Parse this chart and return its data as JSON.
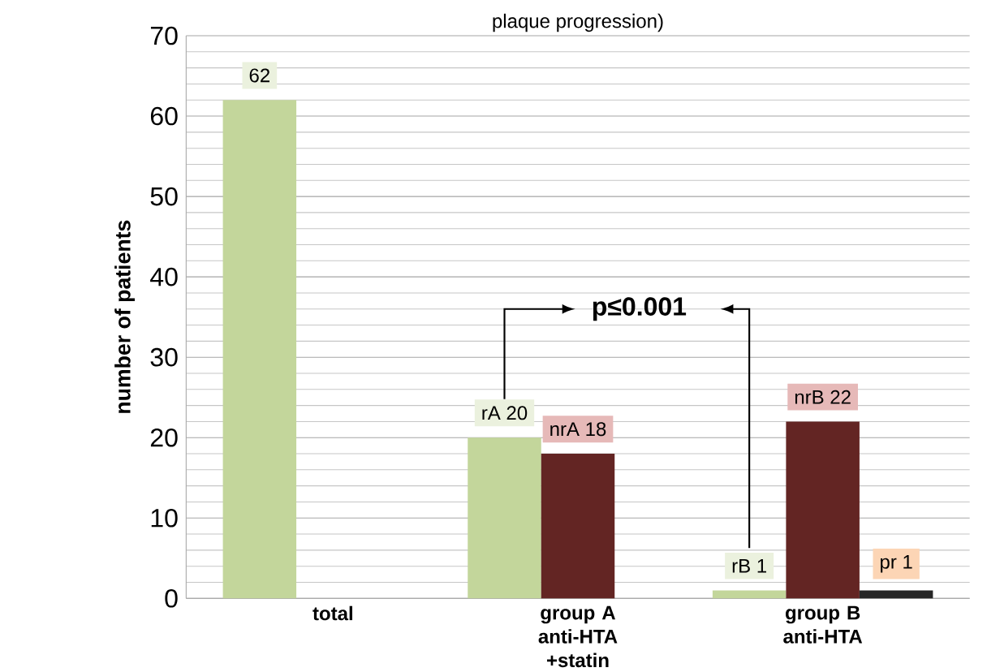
{
  "chart_data": {
    "type": "bar",
    "title": "plaque progression)",
    "ylabel": "number of patients",
    "categories": [
      "total",
      "group A anti-HTA +statin",
      "group B anti-HTA"
    ],
    "series": [
      {
        "color": "#c3d69b",
        "values": [
          62,
          20,
          1
        ],
        "value_labels": [
          "62",
          "rA 20",
          "rB 1"
        ]
      },
      {
        "color": "#632523",
        "values": [
          null,
          18,
          22
        ],
        "value_labels": [
          null,
          "nrA 18",
          "nrB 22"
        ]
      },
      {
        "color": "#262626",
        "values": [
          null,
          null,
          1
        ],
        "value_labels": [
          null,
          null,
          "pr 1"
        ]
      }
    ],
    "ylim": [
      0,
      70
    ],
    "yticks": [
      0,
      10,
      20,
      30,
      40,
      50,
      60,
      70
    ],
    "grid": "y",
    "annotations": [
      "p≤0.001"
    ]
  }
}
